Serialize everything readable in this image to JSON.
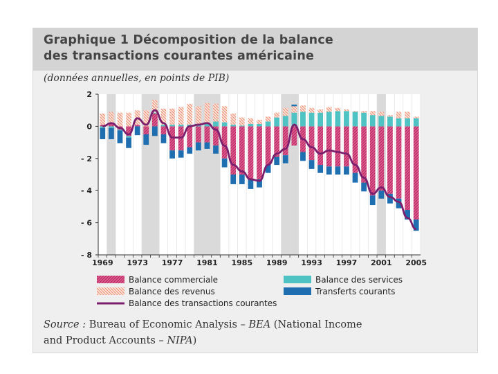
{
  "title_line1": "Graphique 1  Décomposition de la balance",
  "title_line2": "des transactions courantes américaine",
  "subtitle": "(données annuelles, en points de PIB)",
  "source": {
    "label": "Source :",
    "text1": "Bureau of Economic Analysis – ",
    "bea": "BEA",
    "text2": " (National Income",
    "text3": "and Product Accounts – ",
    "nipa": "NIPA",
    "text4": ")"
  },
  "colors": {
    "commerciale": "#e0568c",
    "revenus": "#f2b8a4",
    "services": "#4fc3c3",
    "transferts": "#1f6eb0",
    "courantes": "#7a1f6e",
    "shade": "#dadada"
  },
  "chart_data": {
    "type": "bar",
    "title": "Décomposition de la balance des transactions courantes américaine",
    "ylabel": "données annuelles, en points de PIB",
    "ylim": [
      -8,
      2
    ],
    "yticks": [
      2,
      0,
      -2,
      -4,
      -6,
      -8
    ],
    "ytick_labels": [
      "2",
      "0",
      "- 2",
      "- 4",
      "- 6",
      "- 8"
    ],
    "xticks": [
      1969,
      1973,
      1977,
      1981,
      1985,
      1989,
      1993,
      1997,
      2001,
      2005
    ],
    "shaded_years": [
      1970,
      1974,
      1975,
      1980,
      1981,
      1982,
      1990,
      1991,
      2001
    ],
    "categories": [
      1969,
      1970,
      1971,
      1972,
      1973,
      1974,
      1975,
      1976,
      1977,
      1978,
      1979,
      1980,
      1981,
      1982,
      1983,
      1984,
      1985,
      1986,
      1987,
      1988,
      1989,
      1990,
      1991,
      1992,
      1993,
      1994,
      1995,
      1996,
      1997,
      1998,
      1999,
      2000,
      2001,
      2002,
      2003,
      2004,
      2005
    ],
    "series": [
      {
        "name": "Balance commerciale",
        "values": [
          0.1,
          0.2,
          -0.2,
          -0.6,
          0.1,
          -0.5,
          0.8,
          -0.5,
          -1.5,
          -1.5,
          -1.3,
          -1.0,
          -1.0,
          -1.2,
          -2.0,
          -3.0,
          -3.0,
          -3.3,
          -3.3,
          -2.4,
          -1.9,
          -1.8,
          -1.2,
          -1.6,
          -2.1,
          -2.4,
          -2.5,
          -2.5,
          -2.5,
          -2.9,
          -3.5,
          -4.3,
          -4.0,
          -4.2,
          -4.5,
          -5.2,
          -5.8
        ]
      },
      {
        "name": "Balance des services",
        "values": [
          -0.1,
          -0.1,
          -0.05,
          -0.1,
          0.0,
          0.0,
          0.05,
          0.1,
          0.1,
          0.1,
          0.1,
          0.15,
          0.25,
          0.3,
          0.25,
          0.1,
          0.05,
          0.15,
          0.15,
          0.3,
          0.55,
          0.65,
          0.85,
          0.9,
          0.85,
          0.85,
          0.9,
          0.95,
          0.95,
          0.9,
          0.85,
          0.7,
          0.65,
          0.6,
          0.5,
          0.5,
          0.5
        ]
      },
      {
        "name": "Balance des revenus",
        "values": [
          0.7,
          0.7,
          0.85,
          0.85,
          0.9,
          1.0,
          0.8,
          1.0,
          1.0,
          1.1,
          1.3,
          1.1,
          1.2,
          1.1,
          1.0,
          0.7,
          0.5,
          0.35,
          0.25,
          0.3,
          0.3,
          0.5,
          0.4,
          0.4,
          0.3,
          0.2,
          0.3,
          0.2,
          0.1,
          0.05,
          0.1,
          0.25,
          0.25,
          0.1,
          0.4,
          0.4,
          0.1
        ]
      },
      {
        "name": "Transferts courants",
        "values": [
          -0.7,
          -0.7,
          -0.8,
          -0.65,
          -0.55,
          -0.65,
          -0.6,
          -0.55,
          -0.5,
          -0.45,
          -0.4,
          -0.5,
          -0.4,
          -0.5,
          -0.55,
          -0.6,
          -0.6,
          -0.6,
          -0.5,
          -0.5,
          -0.5,
          -0.5,
          0.1,
          -0.55,
          -0.55,
          -0.5,
          -0.5,
          -0.5,
          -0.5,
          -0.6,
          -0.55,
          -0.6,
          -0.5,
          -0.6,
          -0.6,
          -0.6,
          -0.7
        ]
      },
      {
        "name": "Balance des transactions courantes",
        "values": [
          0.0,
          0.2,
          -0.1,
          -0.5,
          0.5,
          0.1,
          1.0,
          0.2,
          -0.7,
          -0.7,
          0.0,
          0.1,
          0.2,
          -0.2,
          -1.2,
          -2.4,
          -2.8,
          -3.3,
          -3.4,
          -2.4,
          -1.7,
          -1.4,
          0.1,
          -0.8,
          -1.3,
          -1.7,
          -1.5,
          -1.6,
          -1.7,
          -2.4,
          -3.2,
          -4.2,
          -3.8,
          -4.4,
          -4.7,
          -5.7,
          -6.4
        ]
      }
    ],
    "legend": [
      {
        "label": "Balance commerciale",
        "key": "commerciale"
      },
      {
        "label": "Balance des services",
        "key": "services"
      },
      {
        "label": "Balance des revenus",
        "key": "revenus"
      },
      {
        "label": "Transferts courants",
        "key": "transferts"
      },
      {
        "label": "Balance des transactions courantes",
        "key": "courantes"
      }
    ]
  }
}
